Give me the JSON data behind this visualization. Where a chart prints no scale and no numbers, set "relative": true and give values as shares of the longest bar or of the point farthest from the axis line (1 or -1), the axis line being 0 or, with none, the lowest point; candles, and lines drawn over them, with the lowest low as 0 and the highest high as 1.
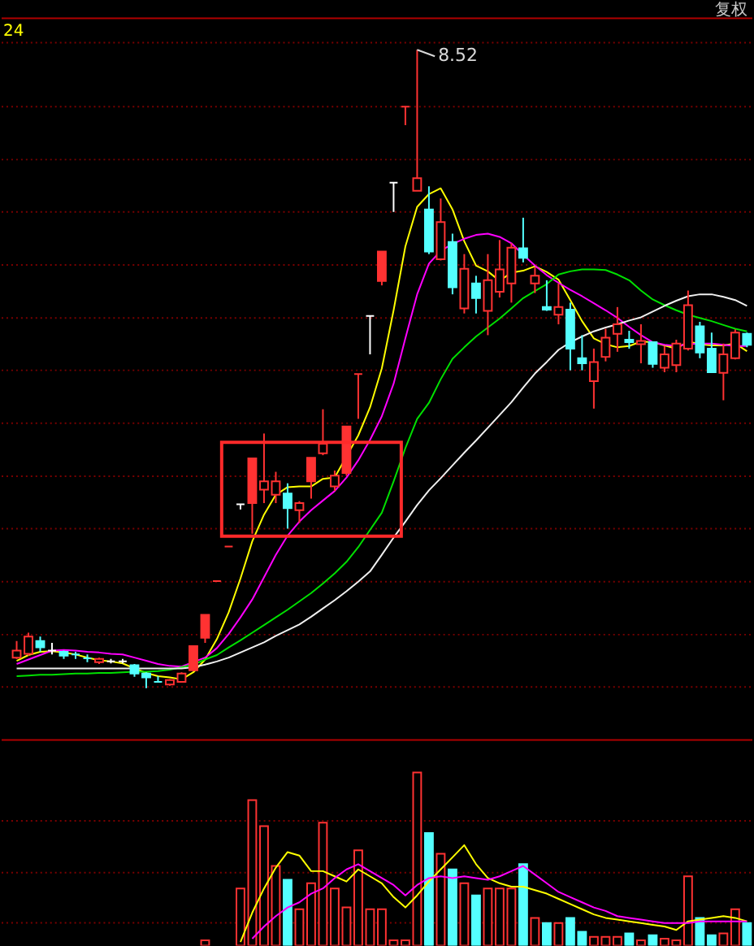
{
  "chart_data": [
    {
      "type": "candlestick",
      "relative": true,
      "tick_labels": false,
      "categories": [
        null,
        null,
        null,
        null,
        null,
        null,
        null,
        null,
        null,
        null,
        null,
        null,
        null,
        null,
        null,
        null,
        null,
        null,
        null,
        null,
        null,
        null,
        null,
        null,
        null,
        null,
        null,
        null,
        null,
        null,
        null,
        null,
        null,
        null,
        null,
        null,
        null,
        null,
        null,
        null,
        null,
        null,
        null,
        null,
        null,
        null,
        null,
        null,
        null,
        null,
        null,
        null,
        null,
        null,
        null,
        null,
        null,
        null,
        null,
        null,
        null,
        null,
        null
      ],
      "ohlc": [
        [
          0.048,
          0.074,
          0.046,
          0.059
        ],
        [
          0.054,
          0.087,
          0.051,
          0.081
        ],
        [
          0.074,
          0.081,
          0.057,
          0.064
        ],
        [
          0.059,
          0.071,
          0.053,
          0.059
        ],
        [
          0.057,
          0.059,
          0.046,
          0.051
        ],
        [
          0.053,
          0.057,
          0.046,
          0.053
        ],
        [
          0.047,
          0.053,
          0.041,
          0.047
        ],
        [
          0.041,
          0.048,
          0.038,
          0.046
        ],
        [
          0.042,
          0.046,
          0.039,
          0.042
        ],
        [
          0.042,
          0.046,
          0.039,
          0.042
        ],
        [
          0.036,
          0.038,
          0.018,
          0.023
        ],
        [
          0.023,
          0.025,
          0,
          0.017
        ],
        [
          0.01,
          0.019,
          0.01,
          0.01
        ],
        [
          0.006,
          0.014,
          0.004,
          0.013
        ],
        [
          0.01,
          0.025,
          0.009,
          0.023
        ],
        [
          0.028,
          0.066,
          0.027,
          0.066
        ],
        [
          0.079,
          0.115,
          0.071,
          0.115
        ],
        [
          0.168,
          0.168,
          0.168,
          0.168
        ],
        [
          0.222,
          0.222,
          0.222,
          0.222
        ],
        [
          0.288,
          0.288,
          0.28,
          0.288
        ],
        [
          0.29,
          0.36,
          0.242,
          0.36
        ],
        [
          0.311,
          0.399,
          0.29,
          0.324
        ],
        [
          0.303,
          0.339,
          0.29,
          0.324
        ],
        [
          0.305,
          0.321,
          0.25,
          0.282
        ],
        [
          0.279,
          0.293,
          0.259,
          0.29
        ],
        [
          0.324,
          0.361,
          0.297,
          0.361
        ],
        [
          0.368,
          0.437,
          0.365,
          0.383
        ],
        [
          0.316,
          0.341,
          0.309,
          0.333
        ],
        [
          0.337,
          0.41,
          0.333,
          0.41
        ],
        [
          0.492,
          0.492,
          0.422,
          0.492
        ],
        [
          0.583,
          0.583,
          0.523,
          0.583
        ],
        [
          0.638,
          0.684,
          0.631,
          0.684
        ],
        [
          0.792,
          0.792,
          0.746,
          0.792
        ],
        [
          0.911,
          0.911,
          0.882,
          0.911
        ],
        [
          0.779,
          1,
          0.779,
          0.799
        ],
        [
          0.75,
          0.786,
          0.68,
          0.684
        ],
        [
          0.672,
          0.767,
          0.67,
          0.73
        ],
        [
          0.699,
          0.712,
          0.617,
          0.628
        ],
        [
          0.595,
          0.68,
          0.587,
          0.657
        ],
        [
          0.634,
          0.646,
          0.587,
          0.611
        ],
        [
          0.591,
          0.68,
          0.553,
          0.639
        ],
        [
          0.621,
          0.702,
          0.612,
          0.656
        ],
        [
          0.634,
          0.697,
          0.604,
          0.69
        ],
        [
          0.689,
          0.737,
          0.667,
          0.674
        ],
        [
          0.634,
          0.659,
          0.619,
          0.646
        ],
        [
          0.597,
          0.639,
          0.591,
          0.593
        ],
        [
          0.585,
          0.634,
          0.57,
          0.597
        ],
        [
          0.593,
          0.604,
          0.498,
          0.532
        ],
        [
          0.517,
          0.553,
          0.498,
          0.509
        ],
        [
          0.481,
          0.532,
          0.438,
          0.511
        ],
        [
          0.519,
          0.563,
          0.512,
          0.549
        ],
        [
          0.555,
          0.597,
          0.527,
          0.57
        ],
        [
          0.546,
          0.56,
          0.532,
          0.542
        ],
        [
          0.539,
          0.57,
          0.509,
          0.544
        ],
        [
          0.542,
          0.543,
          0.502,
          0.508
        ],
        [
          0.502,
          0.536,
          0.495,
          0.523
        ],
        [
          0.506,
          0.546,
          0.495,
          0.54
        ],
        [
          0.532,
          0.623,
          0.529,
          0.6
        ],
        [
          0.567,
          0.574,
          0.517,
          0.526
        ],
        [
          0.532,
          0.557,
          0.494,
          0.495
        ],
        [
          0.494,
          0.54,
          0.451,
          0.523
        ],
        [
          0.517,
          0.562,
          0.515,
          0.557
        ],
        [
          0.555,
          0.557,
          0.534,
          0.538
        ]
      ],
      "colors": [
        "#ff3232",
        "#ff3232",
        "#54ffff",
        "#ffffff",
        "#54ffff",
        "#54ffff",
        "#54ffff",
        "#ff3232",
        "#ffffff",
        "#ffffff",
        "#54ffff",
        "#54ffff",
        "#54ffff",
        "#ff3232",
        "#ff3232",
        "#ff3232",
        "#ff3232",
        "#ff3232",
        "#ff3232",
        "#ffffff",
        "#ff3232",
        "#ff3232",
        "#ff3232",
        "#54ffff",
        "#ff3232",
        "#ff3232",
        "#ff3232",
        "#ff3232",
        "#ff3232",
        "#ff3232",
        "#ffffff",
        "#ff3232",
        "#ffffff",
        "#ff3232",
        "#ff3232",
        "#54ffff",
        "#ff3232",
        "#54ffff",
        "#ff3232",
        "#54ffff",
        "#ff3232",
        "#ff3232",
        "#ff3232",
        "#54ffff",
        "#ff3232",
        "#54ffff",
        "#ff3232",
        "#54ffff",
        "#54ffff",
        "#ff3232",
        "#ff3232",
        "#ff3232",
        "#54ffff",
        "#ff3232",
        "#54ffff",
        "#ff3232",
        "#ff3232",
        "#ff3232",
        "#54ffff",
        "#54ffff",
        "#ff3232",
        "#ff3232",
        "#54ffff"
      ],
      "series": [
        {
          "type": "line",
          "color": "#ffff00",
          "values": [
            0.043,
            0.052,
            0.057,
            0.058,
            0.056,
            0.053,
            0.048,
            0.044,
            0.042,
            0.039,
            0.031,
            0.024,
            0.019,
            0.017,
            0.014,
            0.025,
            0.045,
            0.077,
            0.119,
            0.172,
            0.23,
            0.272,
            0.303,
            0.315,
            0.316,
            0.316,
            0.328,
            0.33,
            null,
            0.396,
            0.44,
            0.501,
            0.592,
            0.692,
            0.754,
            0.774,
            0.783,
            0.75,
            0.7,
            0.662,
            0.653,
            0.638,
            0.651,
            0.654,
            0.661,
            0.652,
            0.64,
            0.608,
            0.575,
            0.548,
            0.539,
            0.534,
            0.536,
            0.543,
            0.542,
            0.537,
            0.532,
            0.543,
            0.539,
            0.537,
            0.537,
            0.54,
            0.528
          ]
        },
        {
          "type": "line",
          "color": "#ff00ff",
          "values": [
            0.038,
            0.045,
            0.052,
            0.059,
            0.06,
            0.059,
            0.057,
            0.056,
            0.054,
            0.053,
            0.048,
            0.043,
            0.038,
            0.035,
            0.034,
            0.041,
            0.048,
            0.063,
            0.085,
            0.111,
            0.139,
            0.174,
            0.209,
            0.239,
            0.261,
            0.279,
            0.294,
            0.309,
            0.33,
            0.357,
            0.389,
            0.426,
            0.477,
            0.548,
            0.617,
            0.665,
            0.685,
            0.696,
            0.704,
            0.71,
            0.712,
            0.707,
            0.697,
            0.679,
            0.662,
            0.647,
            0.635,
            0.624,
            0.614,
            0.603,
            0.592,
            0.58,
            0.566,
            0.553,
            0.542,
            0.538,
            0.536,
            0.539,
            0.54,
            0.54,
            0.538,
            0.536,
            0.536
          ]
        },
        {
          "type": "line",
          "color": "#00e000",
          "values": [
            0.019,
            0.02,
            0.021,
            0.021,
            0.022,
            0.023,
            0.023,
            0.024,
            0.024,
            0.025,
            0.026,
            0.026,
            0.027,
            0.029,
            0.033,
            0.037,
            0.045,
            0.052,
            0.064,
            0.075,
            0.087,
            0.099,
            0.111,
            0.123,
            0.136,
            0.149,
            0.164,
            0.18,
            0.198,
            0.221,
            0.248,
            0.275,
            0.324,
            0.376,
            0.422,
            0.447,
            0.484,
            0.516,
            0.534,
            0.551,
            0.565,
            0.579,
            0.595,
            0.611,
            0.622,
            0.633,
            0.648,
            0.653,
            0.656,
            0.656,
            0.655,
            0.648,
            0.639,
            0.623,
            0.609,
            0.6,
            0.592,
            0.585,
            0.58,
            0.575,
            0.569,
            0.563,
            0.559
          ]
        },
        {
          "type": "line",
          "color": "#f0f0f0",
          "values": [
            0.031,
            0.031,
            0.031,
            0.031,
            0.031,
            0.031,
            0.031,
            0.031,
            0.031,
            0.031,
            0.031,
            0.031,
            0.031,
            0.031,
            0.031,
            0.033,
            0.037,
            0.042,
            0.048,
            0.056,
            0.064,
            0.072,
            0.082,
            0.091,
            0.1,
            0.112,
            0.125,
            0.138,
            0.152,
            0.167,
            0.183,
            0.209,
            0.236,
            0.261,
            0.287,
            0.31,
            0.329,
            0.349,
            0.369,
            0.388,
            0.408,
            0.428,
            0.448,
            0.471,
            0.493,
            0.511,
            0.53,
            0.542,
            0.551,
            0.559,
            0.565,
            0.57,
            0.576,
            0.581,
            0.59,
            0.599,
            0.607,
            0.614,
            0.617,
            0.617,
            0.613,
            0.608,
            0.599
          ]
        }
      ],
      "ref_lines": [
        {
          "axis": "y",
          "value": 1.011,
          "color": "#7a0000",
          "line_style": "dotted"
        },
        {
          "axis": "y",
          "value": 0.911,
          "color": "#7a0000",
          "line_style": "dotted"
        },
        {
          "axis": "y",
          "value": 0.828,
          "color": "#7a0000",
          "line_style": "dotted"
        },
        {
          "axis": "y",
          "value": 0.746,
          "color": "#7a0000",
          "line_style": "dotted"
        },
        {
          "axis": "y",
          "value": 0.663,
          "color": "#7a0000",
          "line_style": "dotted"
        },
        {
          "axis": "y",
          "value": 0.58,
          "color": "#7a0000",
          "line_style": "dotted"
        },
        {
          "axis": "y",
          "value": 0.498,
          "color": "#7a0000",
          "line_style": "dotted"
        },
        {
          "axis": "y",
          "value": 0.415,
          "color": "#7a0000",
          "line_style": "dotted"
        },
        {
          "axis": "y",
          "value": 0.332,
          "color": "#7a0000",
          "line_style": "dotted"
        },
        {
          "axis": "y",
          "value": 0.25,
          "color": "#7a0000",
          "line_style": "dotted"
        },
        {
          "axis": "y",
          "value": 0.167,
          "color": "#7a0000",
          "line_style": "dotted"
        },
        {
          "axis": "y",
          "value": 0.084,
          "color": "#7a0000",
          "line_style": "dotted"
        },
        {
          "axis": "y",
          "value": 0.002,
          "color": "#7a0000",
          "line_style": "dotted"
        }
      ],
      "annotations": [
        "8.52",
        "24",
        "复权"
      ]
    },
    {
      "type": "bar",
      "relative": true,
      "tick_labels": false,
      "categories": [
        null,
        null,
        null,
        null,
        null,
        null,
        null,
        null,
        null,
        null,
        null,
        null,
        null,
        null,
        null,
        null,
        null,
        null,
        null,
        null,
        null,
        null,
        null,
        null,
        null,
        null,
        null,
        null,
        null,
        null,
        null,
        null,
        null,
        null,
        null,
        null,
        null,
        null,
        null,
        null,
        null,
        null,
        null,
        null,
        null,
        null,
        null,
        null,
        null,
        null,
        null,
        null,
        null,
        null,
        null,
        null,
        null,
        null,
        null,
        null,
        null,
        null,
        null
      ],
      "series": [
        {
          "type": "bar",
          "values": [
            null,
            null,
            null,
            null,
            null,
            null,
            null,
            null,
            null,
            null,
            null,
            null,
            null,
            null,
            null,
            null,
            0.03,
            null,
            null,
            0.33,
            0.84,
            0.69,
            0.46,
            0.38,
            0.21,
            0.36,
            0.71,
            0.33,
            0.22,
            0.55,
            0.21,
            0.21,
            0.03,
            0.03,
            1,
            0.65,
            0.53,
            0.44,
            0.36,
            0.29,
            0.33,
            0.33,
            0.33,
            0.47,
            0.16,
            0.13,
            0.13,
            0.16,
            0.08,
            0.05,
            0.05,
            0.05,
            0.07,
            0.03,
            0.06,
            0.04,
            0.03,
            0.4,
            0.16,
            0.06,
            0.07,
            0.21,
            0.13
          ],
          "colors": [
            null,
            null,
            null,
            null,
            null,
            null,
            null,
            null,
            null,
            null,
            null,
            null,
            null,
            null,
            null,
            null,
            "#ff3232",
            null,
            null,
            "#ff3232",
            "#ff3232",
            "#ff3232",
            "#ff3232",
            "#54ffff",
            "#ff3232",
            "#ff3232",
            "#ff3232",
            "#ff3232",
            "#ff3232",
            "#ff3232",
            "#ff3232",
            "#ff3232",
            "#ff3232",
            "#ff3232",
            "#ff3232",
            "#54ffff",
            "#ff3232",
            "#54ffff",
            "#ff3232",
            "#54ffff",
            "#ff3232",
            "#ff3232",
            "#ff3232",
            "#54ffff",
            "#ff3232",
            "#54ffff",
            "#ff3232",
            "#54ffff",
            "#54ffff",
            "#ff3232",
            "#ff3232",
            "#ff3232",
            "#54ffff",
            "#ff3232",
            "#54ffff",
            "#ff3232",
            "#ff3232",
            "#ff3232",
            "#54ffff",
            "#54ffff",
            "#ff3232",
            "#ff3232",
            "#54ffff"
          ]
        },
        {
          "type": "line",
          "color": "#ffff00",
          "values": [
            null,
            null,
            null,
            null,
            null,
            null,
            null,
            null,
            null,
            null,
            null,
            null,
            null,
            null,
            null,
            null,
            null,
            null,
            null,
            0.02,
            0.19,
            0.33,
            0.45,
            0.54,
            0.52,
            0.43,
            0.43,
            0.4,
            0.37,
            0.44,
            0.4,
            0.36,
            0.28,
            0.22,
            0.29,
            0.37,
            0.44,
            0.51,
            0.58,
            0.47,
            0.39,
            0.36,
            0.34,
            0.34,
            0.32,
            0.3,
            0.27,
            0.24,
            0.21,
            0.18,
            0.16,
            0.15,
            0.14,
            0.13,
            0.12,
            0.11,
            0.09,
            0.14,
            0.15,
            0.16,
            0.17,
            0.16,
            0.14
          ]
        },
        {
          "type": "line",
          "color": "#ff00ff",
          "values": [
            null,
            null,
            null,
            null,
            null,
            null,
            null,
            null,
            null,
            null,
            null,
            null,
            null,
            null,
            null,
            null,
            null,
            null,
            null,
            null,
            0.04,
            0.11,
            0.17,
            0.22,
            0.25,
            0.3,
            0.33,
            0.39,
            0.44,
            0.47,
            0.43,
            0.39,
            0.35,
            0.29,
            0.35,
            0.39,
            0.4,
            0.39,
            0.4,
            0.39,
            0.38,
            0.4,
            0.43,
            0.46,
            0.41,
            0.36,
            0.31,
            0.28,
            0.25,
            0.22,
            0.2,
            0.17,
            0.16,
            0.15,
            0.14,
            0.13,
            0.13,
            0.13,
            0.14,
            0.14,
            0.14,
            0.14,
            0.14
          ]
        }
      ],
      "ref_lines": [
        {
          "axis": "y",
          "value": 0.72,
          "color": "#7a0000",
          "line_style": "dotted"
        },
        {
          "axis": "y",
          "value": 0.421,
          "color": "#7a0000",
          "line_style": "dotted"
        },
        {
          "axis": "y",
          "value": 0.131,
          "color": "#7a0000",
          "line_style": "dotted"
        }
      ]
    }
  ]
}
